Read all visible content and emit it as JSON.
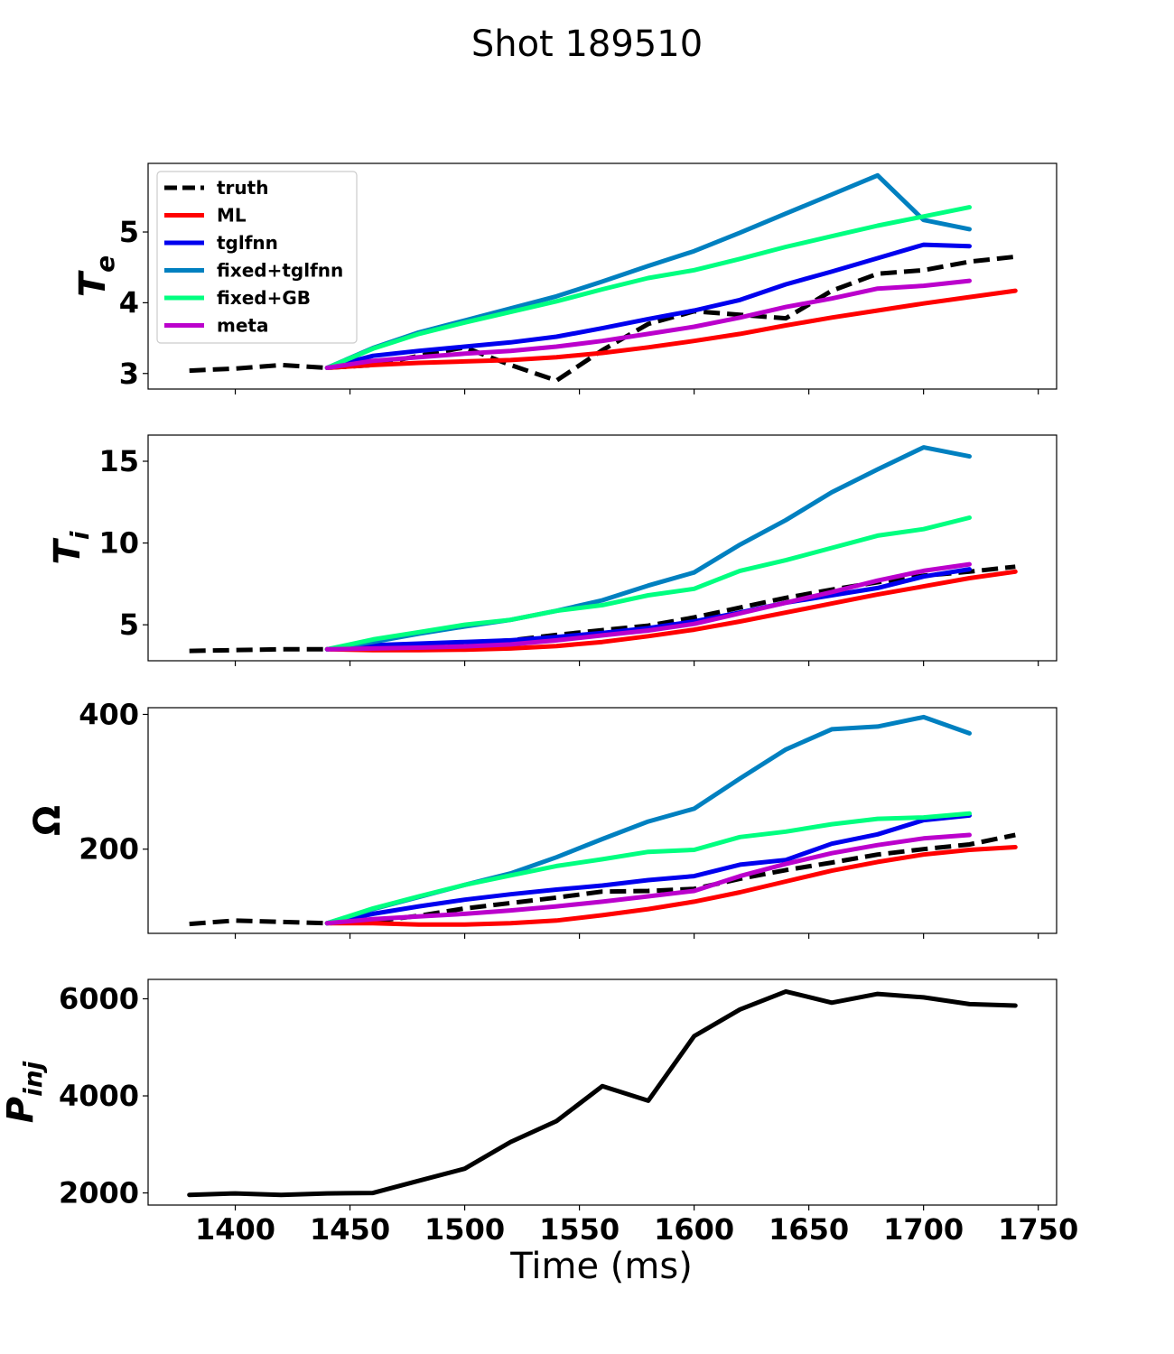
{
  "figure": {
    "title": "Shot 189510",
    "xlabel": "Time (ms)"
  },
  "colors": {
    "truth": "#000000",
    "ML": "#ff0000",
    "tglfnn": "#0000ee",
    "fixed+tglfnn": "#0080c0",
    "fixed+GB": "#00ff80",
    "meta": "#bb00cc",
    "Pinj": "#000000"
  },
  "chart_data": [
    {
      "type": "line",
      "ylabel": "T",
      "ylabel_sub": "e",
      "xlim": [
        1362,
        1758
      ],
      "ylim": [
        2.78,
        5.97
      ],
      "xticks": [
        1400,
        1450,
        1500,
        1550,
        1600,
        1650,
        1700,
        1750
      ],
      "show_xticklabels": false,
      "yticks": [
        3,
        4,
        5
      ],
      "legend": "upper-left",
      "series": [
        {
          "name": "truth",
          "dashed": true,
          "x": [
            1380,
            1400,
            1420,
            1440,
            1460,
            1480,
            1500,
            1520,
            1540,
            1560,
            1580,
            1600,
            1620,
            1640,
            1660,
            1680,
            1700,
            1720,
            1740
          ],
          "y": [
            3.04,
            3.07,
            3.12,
            3.08,
            3.12,
            3.25,
            3.37,
            3.12,
            2.9,
            3.33,
            3.7,
            3.88,
            3.83,
            3.78,
            4.17,
            4.41,
            4.46,
            4.58,
            4.65
          ]
        },
        {
          "name": "ML",
          "x": [
            1440,
            1460,
            1480,
            1500,
            1520,
            1540,
            1560,
            1580,
            1600,
            1620,
            1640,
            1660,
            1680,
            1700,
            1720,
            1740
          ],
          "y": [
            3.08,
            3.12,
            3.15,
            3.17,
            3.19,
            3.23,
            3.29,
            3.37,
            3.46,
            3.56,
            3.68,
            3.79,
            3.89,
            3.99,
            4.08,
            4.17
          ]
        },
        {
          "name": "tglfnn",
          "x": [
            1440,
            1460,
            1480,
            1500,
            1520,
            1540,
            1560,
            1580,
            1600,
            1620,
            1640,
            1660,
            1680,
            1700,
            1720
          ],
          "y": [
            3.08,
            3.25,
            3.32,
            3.38,
            3.44,
            3.52,
            3.64,
            3.77,
            3.89,
            4.04,
            4.26,
            4.44,
            4.63,
            4.82,
            4.8
          ]
        },
        {
          "name": "fixed+tglfnn",
          "x": [
            1440,
            1460,
            1480,
            1500,
            1520,
            1540,
            1560,
            1580,
            1600,
            1620,
            1640,
            1660,
            1680,
            1700,
            1720
          ],
          "y": [
            3.08,
            3.36,
            3.58,
            3.75,
            3.92,
            4.09,
            4.3,
            4.52,
            4.73,
            4.99,
            5.26,
            5.53,
            5.8,
            5.17,
            5.04
          ]
        },
        {
          "name": "fixed+GB",
          "x": [
            1440,
            1460,
            1480,
            1500,
            1520,
            1540,
            1560,
            1580,
            1600,
            1620,
            1640,
            1660,
            1680,
            1700,
            1720
          ],
          "y": [
            3.08,
            3.35,
            3.56,
            3.72,
            3.87,
            4.02,
            4.19,
            4.35,
            4.46,
            4.62,
            4.79,
            4.94,
            5.09,
            5.22,
            5.35
          ]
        },
        {
          "name": "meta",
          "x": [
            1440,
            1460,
            1480,
            1500,
            1520,
            1540,
            1560,
            1580,
            1600,
            1620,
            1640,
            1660,
            1680,
            1700,
            1720
          ],
          "y": [
            3.08,
            3.18,
            3.23,
            3.28,
            3.32,
            3.38,
            3.46,
            3.56,
            3.66,
            3.79,
            3.94,
            4.06,
            4.2,
            4.24,
            4.31
          ]
        }
      ]
    },
    {
      "type": "line",
      "ylabel": "T",
      "ylabel_sub": "i",
      "xlim": [
        1362,
        1758
      ],
      "ylim": [
        2.8,
        16.6
      ],
      "xticks": [
        1400,
        1450,
        1500,
        1550,
        1600,
        1650,
        1700,
        1750
      ],
      "show_xticklabels": false,
      "yticks": [
        5,
        10,
        15
      ],
      "series": [
        {
          "name": "truth",
          "dashed": true,
          "x": [
            1380,
            1400,
            1420,
            1440,
            1460,
            1480,
            1500,
            1520,
            1540,
            1560,
            1580,
            1600,
            1620,
            1640,
            1660,
            1680,
            1700,
            1720,
            1740
          ],
          "y": [
            3.4,
            3.45,
            3.5,
            3.5,
            3.62,
            3.75,
            3.88,
            4.05,
            4.38,
            4.67,
            4.95,
            5.45,
            6.05,
            6.65,
            7.15,
            7.6,
            8.0,
            8.25,
            8.55
          ]
        },
        {
          "name": "ML",
          "x": [
            1440,
            1460,
            1480,
            1500,
            1520,
            1540,
            1560,
            1580,
            1600,
            1620,
            1640,
            1660,
            1680,
            1700,
            1720,
            1740
          ],
          "y": [
            3.5,
            3.45,
            3.45,
            3.48,
            3.55,
            3.7,
            3.95,
            4.3,
            4.7,
            5.2,
            5.75,
            6.3,
            6.85,
            7.35,
            7.85,
            8.25
          ]
        },
        {
          "name": "tglfnn",
          "x": [
            1440,
            1460,
            1480,
            1500,
            1520,
            1540,
            1560,
            1580,
            1600,
            1620,
            1640,
            1660,
            1680,
            1700,
            1720
          ],
          "y": [
            3.5,
            3.75,
            3.85,
            3.95,
            4.05,
            4.25,
            4.5,
            4.8,
            5.2,
            5.75,
            6.35,
            6.8,
            7.25,
            7.95,
            8.4
          ]
        },
        {
          "name": "fixed+tglfnn",
          "x": [
            1440,
            1460,
            1480,
            1500,
            1520,
            1540,
            1560,
            1580,
            1600,
            1620,
            1640,
            1660,
            1680,
            1700,
            1720
          ],
          "y": [
            3.5,
            3.95,
            4.45,
            4.9,
            5.3,
            5.85,
            6.5,
            7.4,
            8.2,
            9.9,
            11.4,
            13.1,
            14.5,
            15.85,
            15.3
          ]
        },
        {
          "name": "fixed+GB",
          "x": [
            1440,
            1460,
            1480,
            1500,
            1520,
            1540,
            1560,
            1580,
            1600,
            1620,
            1640,
            1660,
            1680,
            1700,
            1720
          ],
          "y": [
            3.5,
            4.1,
            4.55,
            5.0,
            5.3,
            5.85,
            6.2,
            6.8,
            7.2,
            8.3,
            8.95,
            9.7,
            10.45,
            10.85,
            11.55
          ]
        },
        {
          "name": "meta",
          "x": [
            1440,
            1460,
            1480,
            1500,
            1520,
            1540,
            1560,
            1580,
            1600,
            1620,
            1640,
            1660,
            1680,
            1700,
            1720
          ],
          "y": [
            3.5,
            3.55,
            3.6,
            3.68,
            3.8,
            4.05,
            4.35,
            4.65,
            5.05,
            5.7,
            6.35,
            7.0,
            7.7,
            8.3,
            8.7
          ]
        }
      ]
    },
    {
      "type": "line",
      "ylabel": "Ω",
      "xlim": [
        1362,
        1758
      ],
      "ylim": [
        75,
        410
      ],
      "xticks": [
        1400,
        1450,
        1500,
        1550,
        1600,
        1650,
        1700,
        1750
      ],
      "show_xticklabels": false,
      "yticks": [
        200,
        400
      ],
      "series": [
        {
          "name": "truth",
          "dashed": true,
          "x": [
            1380,
            1400,
            1420,
            1440,
            1460,
            1480,
            1500,
            1520,
            1540,
            1560,
            1580,
            1600,
            1620,
            1640,
            1660,
            1680,
            1700,
            1720,
            1740
          ],
          "y": [
            89,
            94,
            92,
            90,
            93,
            101,
            112,
            120,
            128,
            137,
            138,
            141,
            156,
            169,
            180,
            192,
            200,
            207,
            221
          ]
        },
        {
          "name": "ML",
          "x": [
            1440,
            1460,
            1480,
            1500,
            1520,
            1540,
            1560,
            1580,
            1600,
            1620,
            1640,
            1660,
            1680,
            1700,
            1720,
            1740
          ],
          "y": [
            90,
            90,
            88,
            88,
            90,
            94,
            102,
            111,
            122,
            136,
            152,
            168,
            181,
            192,
            199,
            203
          ]
        },
        {
          "name": "tglfnn",
          "x": [
            1440,
            1460,
            1480,
            1500,
            1520,
            1540,
            1560,
            1580,
            1600,
            1620,
            1640,
            1660,
            1680,
            1700,
            1720
          ],
          "y": [
            90,
            104,
            115,
            125,
            133,
            140,
            146,
            154,
            160,
            177,
            184,
            208,
            222,
            243,
            250
          ]
        },
        {
          "name": "fixed+tglfnn",
          "x": [
            1440,
            1460,
            1480,
            1500,
            1520,
            1540,
            1560,
            1580,
            1600,
            1620,
            1640,
            1660,
            1680,
            1700,
            1720
          ],
          "y": [
            90,
            111,
            129,
            147,
            164,
            188,
            215,
            241,
            260,
            305,
            348,
            378,
            382,
            396,
            372
          ]
        },
        {
          "name": "fixed+GB",
          "x": [
            1440,
            1460,
            1480,
            1500,
            1520,
            1540,
            1560,
            1580,
            1600,
            1620,
            1640,
            1660,
            1680,
            1700,
            1720
          ],
          "y": [
            90,
            112,
            130,
            147,
            161,
            175,
            185,
            196,
            199,
            218,
            226,
            237,
            245,
            247,
            253
          ]
        },
        {
          "name": "meta",
          "x": [
            1440,
            1460,
            1480,
            1500,
            1520,
            1540,
            1560,
            1580,
            1600,
            1620,
            1640,
            1660,
            1680,
            1700,
            1720
          ],
          "y": [
            90,
            96,
            100,
            104,
            109,
            115,
            122,
            130,
            138,
            160,
            178,
            194,
            206,
            216,
            221
          ]
        }
      ]
    },
    {
      "type": "line",
      "ylabel": "P",
      "ylabel_sub": "inj",
      "xlim": [
        1362,
        1758
      ],
      "ylim": [
        1750,
        6400
      ],
      "xticks": [
        1400,
        1450,
        1500,
        1550,
        1600,
        1650,
        1700,
        1750
      ],
      "show_xticklabels": true,
      "yticks": [
        2000,
        4000,
        6000
      ],
      "series": [
        {
          "name": "",
          "x": [
            1380,
            1400,
            1420,
            1440,
            1460,
            1480,
            1500,
            1520,
            1540,
            1560,
            1580,
            1600,
            1620,
            1640,
            1660,
            1680,
            1700,
            1720,
            1740
          ],
          "y": [
            1960,
            1990,
            1960,
            1990,
            2000,
            2250,
            2500,
            3050,
            3480,
            4200,
            3900,
            5230,
            5780,
            6150,
            5920,
            6100,
            6030,
            5890,
            5860
          ]
        }
      ]
    }
  ]
}
